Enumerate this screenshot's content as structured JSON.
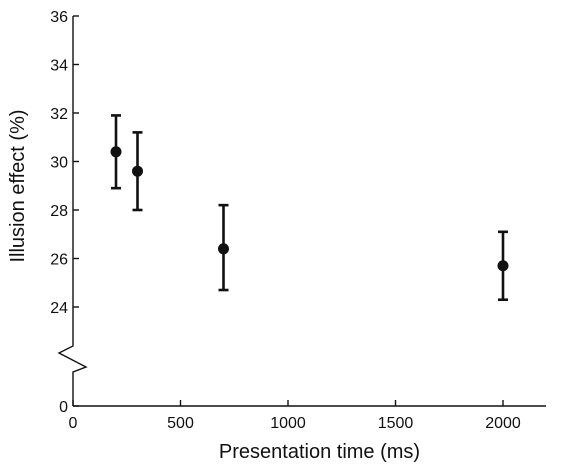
{
  "chart_data": {
    "type": "scatter",
    "xlabel": "Presentation time (ms)",
    "ylabel": "Illusion effect (%)",
    "xlim": [
      0,
      2200
    ],
    "ylim_upper": [
      24,
      36
    ],
    "y_axis_break": true,
    "x_ticks": [
      0,
      500,
      1000,
      1500,
      2000
    ],
    "y_ticks": [
      0,
      24,
      26,
      28,
      30,
      32,
      34,
      36
    ],
    "points": [
      {
        "x": 200,
        "y": 30.4,
        "err_low": 28.9,
        "err_high": 31.9
      },
      {
        "x": 300,
        "y": 29.6,
        "err_low": 28.0,
        "err_high": 31.2
      },
      {
        "x": 700,
        "y": 26.4,
        "err_low": 24.7,
        "err_high": 28.2
      },
      {
        "x": 2000,
        "y": 25.7,
        "err_low": 24.3,
        "err_high": 27.1
      }
    ],
    "grid": false,
    "legend": "none",
    "marker_color": "#111111"
  }
}
